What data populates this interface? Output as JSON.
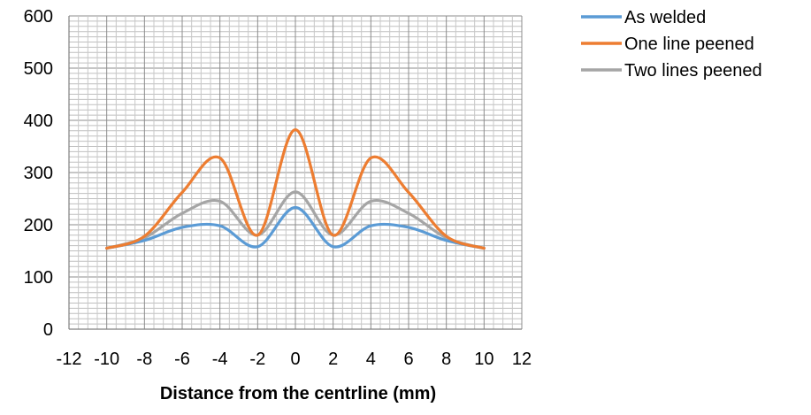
{
  "chart_data": {
    "type": "line",
    "title": "",
    "xlabel": "Distance from the centrline (mm)",
    "ylabel": "",
    "xlim": [
      -12,
      12
    ],
    "ylim": [
      0,
      600
    ],
    "xticks": [
      -12,
      -10,
      -8,
      -6,
      -4,
      -2,
      0,
      2,
      4,
      6,
      8,
      10,
      12
    ],
    "yticks": [
      0,
      100,
      200,
      300,
      400,
      500,
      600
    ],
    "grid": "dense minor gridlines",
    "legend_position": "top-right, outside plot",
    "series": [
      {
        "name": "As welded",
        "color": "#5B9BD5",
        "x": [
          -10,
          -8,
          -6,
          -4,
          -2,
          0,
          2,
          4,
          6,
          8,
          10
        ],
        "y": [
          155,
          170,
          195,
          198,
          158,
          233,
          158,
          198,
          195,
          170,
          155
        ]
      },
      {
        "name": "One line peened",
        "color": "#ED7D31",
        "x": [
          -10,
          -8,
          -6,
          -4,
          -2,
          0,
          2,
          4,
          6,
          8,
          10
        ],
        "y": [
          155,
          178,
          262,
          328,
          180,
          382,
          180,
          328,
          262,
          178,
          155
        ]
      },
      {
        "name": "Two lines peened",
        "color": "#A5A5A5",
        "x": [
          -10,
          -8,
          -6,
          -4,
          -2,
          0,
          2,
          4,
          6,
          8,
          10
        ],
        "y": [
          155,
          175,
          222,
          245,
          180,
          263,
          180,
          245,
          222,
          175,
          155
        ]
      }
    ]
  }
}
